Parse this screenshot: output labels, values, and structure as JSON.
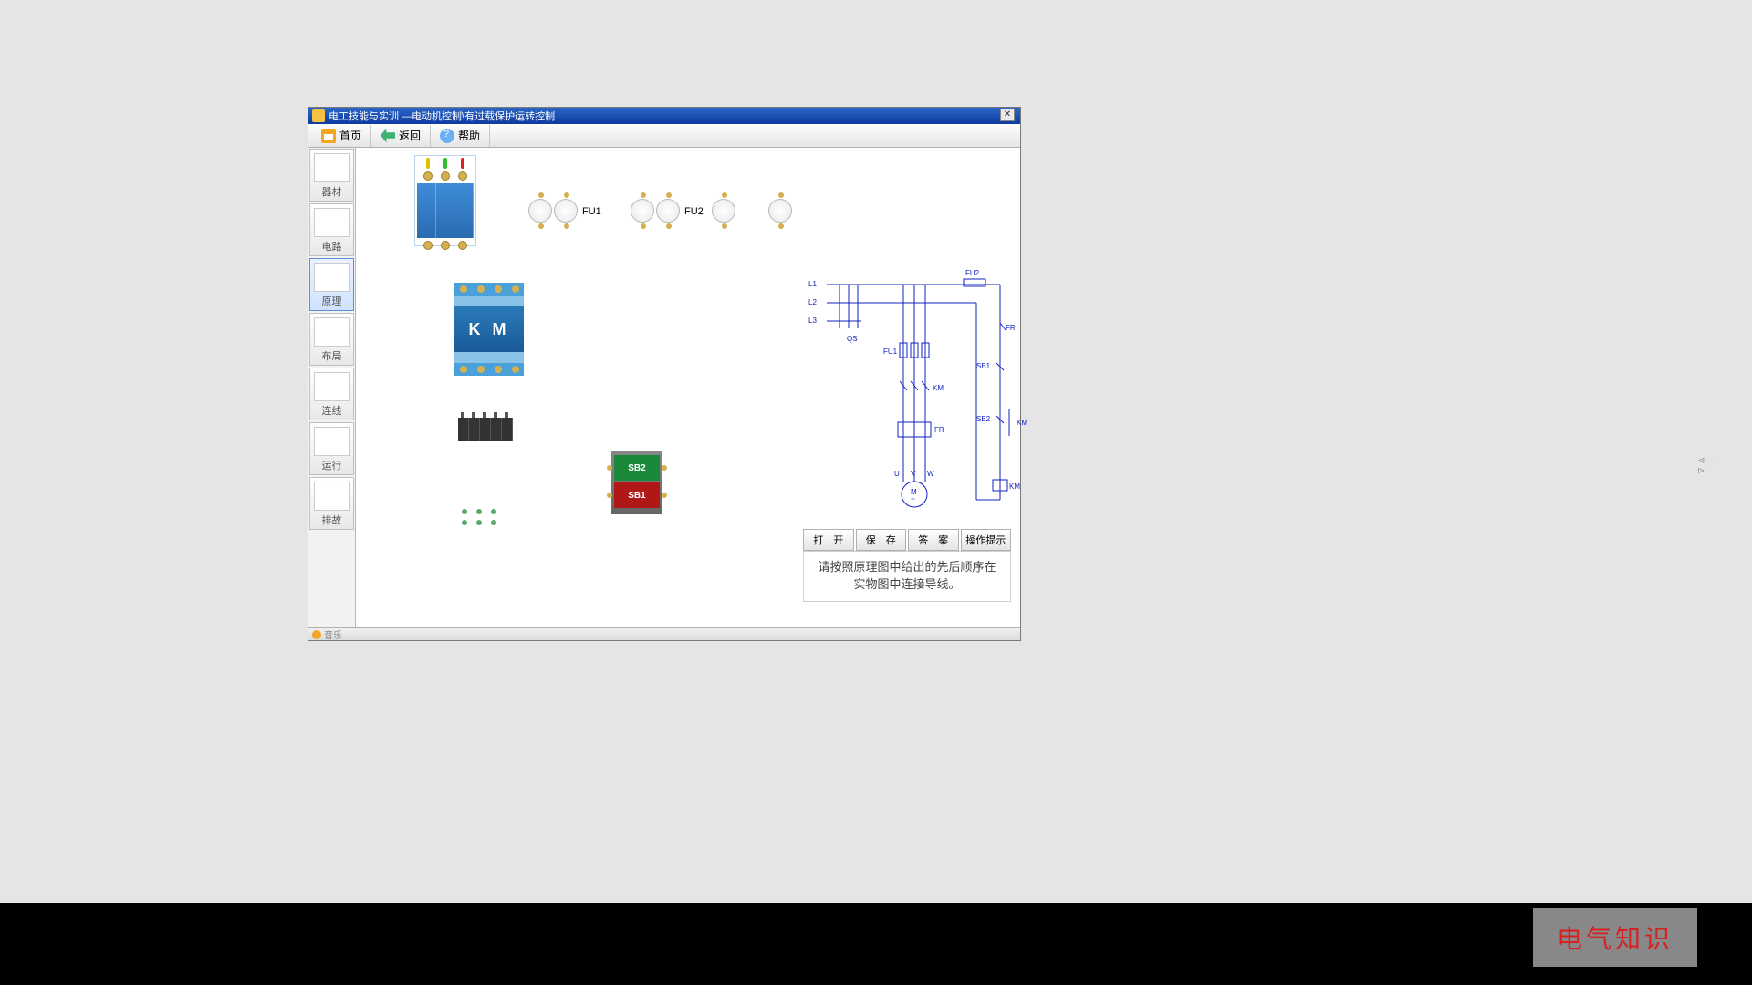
{
  "window": {
    "title": "电工技能与实训 —电动机控制\\有过载保护运转控制"
  },
  "toolbar": {
    "home": "首页",
    "back": "返回",
    "help": "帮助"
  },
  "sidebar": [
    {
      "label": "器材",
      "key": "materials"
    },
    {
      "label": "电路",
      "key": "circuit"
    },
    {
      "label": "原理",
      "key": "principle",
      "active": true
    },
    {
      "label": "布局",
      "key": "layout"
    },
    {
      "label": "连线",
      "key": "wiring"
    },
    {
      "label": "运行",
      "key": "run"
    },
    {
      "label": "排故",
      "key": "troubleshoot"
    }
  ],
  "statusbar": {
    "music": "音乐"
  },
  "components": {
    "breaker": {
      "led_colors": [
        "#e0c000",
        "#30c030",
        "#e02020"
      ],
      "terminal_color": "#d4b050"
    },
    "fuses": {
      "fu1_label": "FU1",
      "fu2_label": "FU2",
      "group1_count": 2,
      "group2_count": 3
    },
    "contactor": {
      "label": "K M",
      "body_color": "#1a5a98"
    },
    "pushbuttons": {
      "sb2": {
        "label": "SB2",
        "bg": "#1a8a3a"
      },
      "sb1": {
        "label": "SB1",
        "bg": "#b01818"
      }
    }
  },
  "schematic": {
    "l1": "L1",
    "l2": "L2",
    "l3": "L3",
    "qs": "QS",
    "fu1": "FU1",
    "fu2": "FU2",
    "km": "KM",
    "fr": "FR",
    "sb1": "SB1",
    "sb2": "SB2",
    "u": "U",
    "v": "V",
    "w": "W",
    "m": "M",
    "wave": "~"
  },
  "schematic_buttons": {
    "open": "打　开",
    "save": "保　存",
    "answer": "答　案",
    "hint": "操作提示"
  },
  "tip": "请按照原理图中给出的先后顺序在实物图中连接导线。",
  "watermark": "电气知识"
}
